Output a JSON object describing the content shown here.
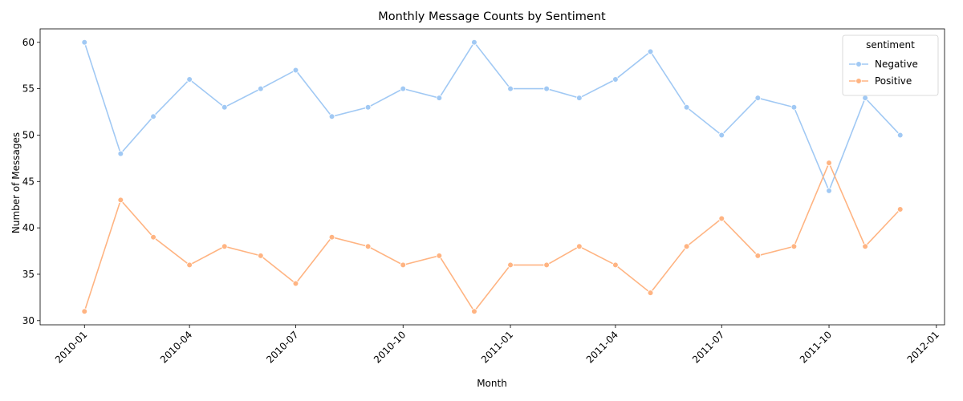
{
  "chart_data": {
    "type": "line",
    "title": "Monthly Message Counts by Sentiment",
    "xlabel": "Month",
    "ylabel": "Number of Messages",
    "x": [
      "2010-01",
      "2010-02",
      "2010-03",
      "2010-04",
      "2010-05",
      "2010-06",
      "2010-07",
      "2010-08",
      "2010-09",
      "2010-10",
      "2010-11",
      "2010-12",
      "2011-01",
      "2011-02",
      "2011-03",
      "2011-04",
      "2011-05",
      "2011-06",
      "2011-07",
      "2011-08",
      "2011-09",
      "2011-10",
      "2011-11",
      "2011-12"
    ],
    "x_ticks": [
      "2010-01",
      "2010-04",
      "2010-07",
      "2010-10",
      "2011-01",
      "2011-04",
      "2011-07",
      "2011-10",
      "2012-01"
    ],
    "xlim": [
      "2009-11-24",
      "2012-01-08"
    ],
    "y_ticks": [
      30,
      35,
      40,
      45,
      50,
      55,
      60
    ],
    "ylim": [
      29.55,
      61.45
    ],
    "series": [
      {
        "name": "Negative",
        "color": "#a1c9f4",
        "values": [
          60,
          48,
          52,
          56,
          53,
          55,
          57,
          52,
          53,
          55,
          54,
          60,
          55,
          55,
          54,
          56,
          59,
          53,
          50,
          54,
          53,
          44,
          54,
          50
        ]
      },
      {
        "name": "Positive",
        "color": "#ffb482",
        "values": [
          31,
          43,
          39,
          36,
          38,
          37,
          34,
          39,
          38,
          36,
          37,
          31,
          36,
          36,
          38,
          36,
          33,
          38,
          41,
          37,
          38,
          47,
          38,
          42
        ]
      }
    ],
    "legend": {
      "title": "sentiment",
      "placement": "top-right"
    },
    "grid": false
  }
}
